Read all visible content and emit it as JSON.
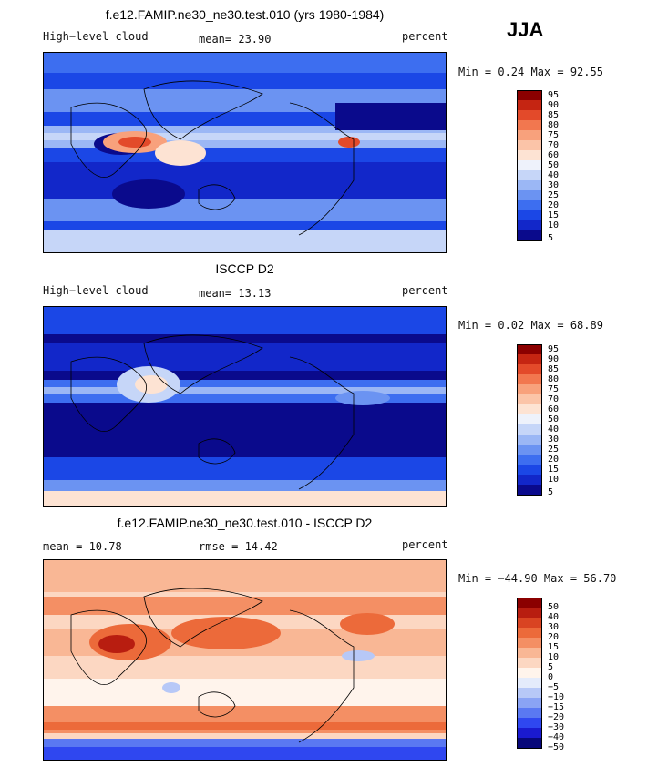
{
  "season": "JJA",
  "colors": {
    "abs_scale": [
      "#0a0a8c",
      "#1227c9",
      "#1b47e6",
      "#3d6ef0",
      "#6b93f2",
      "#9bb7f5",
      "#c6d6f8",
      "#eef2fb",
      "#fde3d3",
      "#fbc4a8",
      "#f8a17c",
      "#f2774f",
      "#e34a2a",
      "#c52512",
      "#8b0000"
    ],
    "diff_scale": [
      "#08087a",
      "#1a1ad0",
      "#2f47f0",
      "#5a78f2",
      "#8aa3f4",
      "#b7c8f7",
      "#e4ebfb",
      "#fff4ec",
      "#fcd7c2",
      "#f9b795",
      "#f48f64",
      "#ec6a3a",
      "#d94422",
      "#b81d10",
      "#8b0000"
    ]
  },
  "panels": [
    {
      "title": "f.e12.FAMIP.ne30_ne30.test.010 (yrs 1980-1984)",
      "left_label": "High−level cloud",
      "mid_label": "mean=   23.90",
      "units": "percent",
      "minmax": "Min =    0.24 Max =   92.55"
    },
    {
      "title": "ISCCP D2",
      "left_label": "High−level cloud",
      "mid_label": "mean=   13.13",
      "units": "percent",
      "minmax": "Min =    0.02 Max =   68.89"
    },
    {
      "title": "f.e12.FAMIP.ne30_ne30.test.010 - ISCCP D2",
      "left_label": "mean =   10.78",
      "mid_label": "rmse =   14.42",
      "units": "percent",
      "minmax": "Min = −44.90 Max =   56.70"
    }
  ],
  "chart_data": [
    {
      "type": "heatmap",
      "title": "f.e12.FAMIP.ne30_ne30.test.010 (yrs 1980-1984)",
      "variable": "High−level cloud",
      "units": "percent",
      "season": "JJA",
      "mean": 23.9,
      "min": 0.24,
      "max": 92.55,
      "colorbar_levels": [
        "95",
        "90",
        "85",
        "80",
        "75",
        "70",
        "60",
        "50",
        "40",
        "30",
        "25",
        "20",
        "15",
        "10",
        "5"
      ]
    },
    {
      "type": "heatmap",
      "title": "ISCCP D2",
      "variable": "High−level cloud",
      "units": "percent",
      "mean": 13.13,
      "min": 0.02,
      "max": 68.89,
      "colorbar_levels": [
        "95",
        "90",
        "85",
        "80",
        "75",
        "70",
        "60",
        "50",
        "40",
        "30",
        "25",
        "20",
        "15",
        "10",
        "5"
      ]
    },
    {
      "type": "heatmap",
      "title": "f.e12.FAMIP.ne30_ne30.test.010 - ISCCP D2",
      "units": "percent",
      "mean": 10.78,
      "rmse": 14.42,
      "min": -44.9,
      "max": 56.7,
      "colorbar_levels": [
        "50",
        "40",
        "30",
        "20",
        "15",
        "10",
        "5",
        "0",
        "−5",
        "−10",
        "−15",
        "−20",
        "−30",
        "−40",
        "−50"
      ]
    }
  ]
}
